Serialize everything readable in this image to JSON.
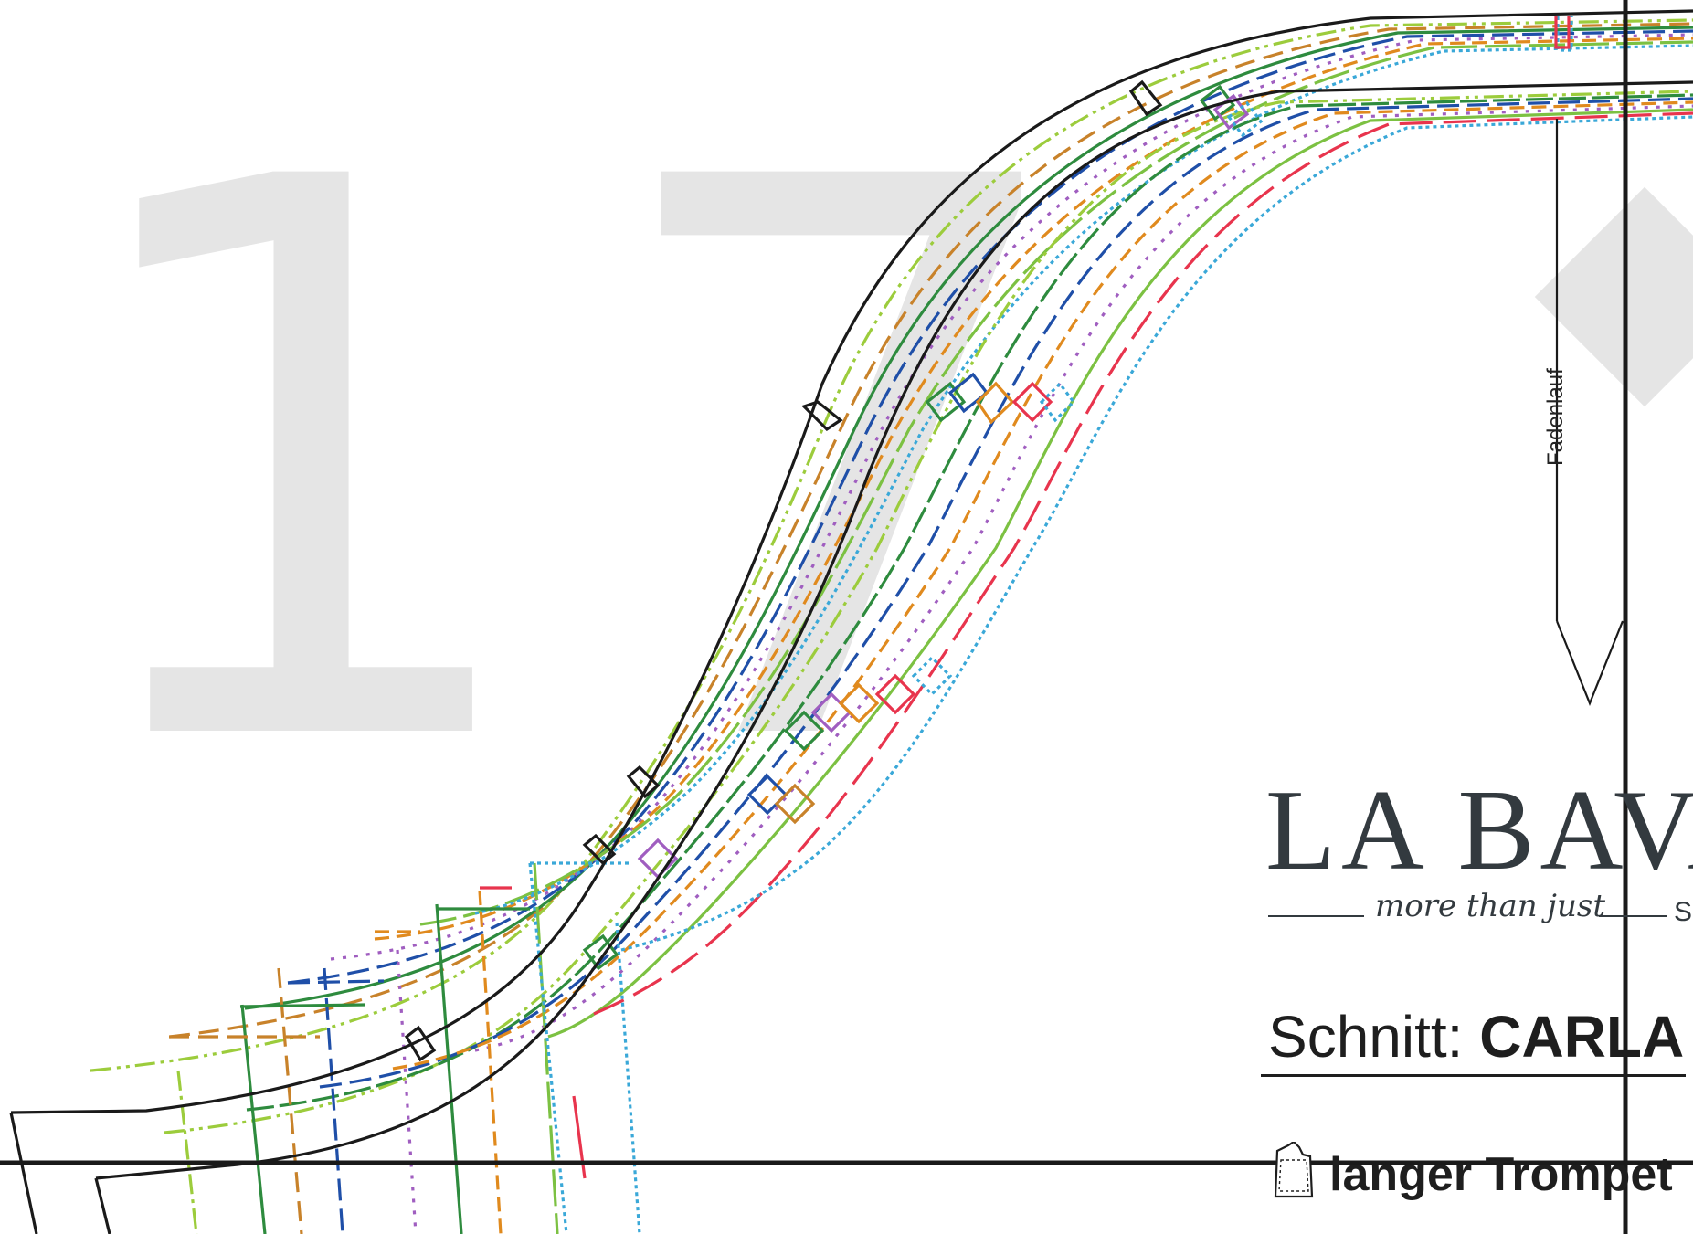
{
  "page_number": "17",
  "grainline_label": "Fadenlauf",
  "brand": {
    "name": "LA BAVA",
    "tagline": "more than just",
    "tagline_tail": "S"
  },
  "pattern": {
    "prefix": "Schnitt:",
    "name": "CARLA"
  },
  "piece": {
    "name": "langer Trompet"
  },
  "icons": [
    "shirt-piece-icon",
    "grainline-arrow-icon"
  ],
  "colors": {
    "number_watermark": "#e5e5e5",
    "outline": "#1a1a1a",
    "size_lines": [
      "#9ccc3c",
      "#2e8b3e",
      "#1f4fa8",
      "#e08a1e",
      "#e8344d",
      "#a05ec0",
      "#3aa8d8",
      "#7cc142",
      "#c8822a"
    ]
  }
}
